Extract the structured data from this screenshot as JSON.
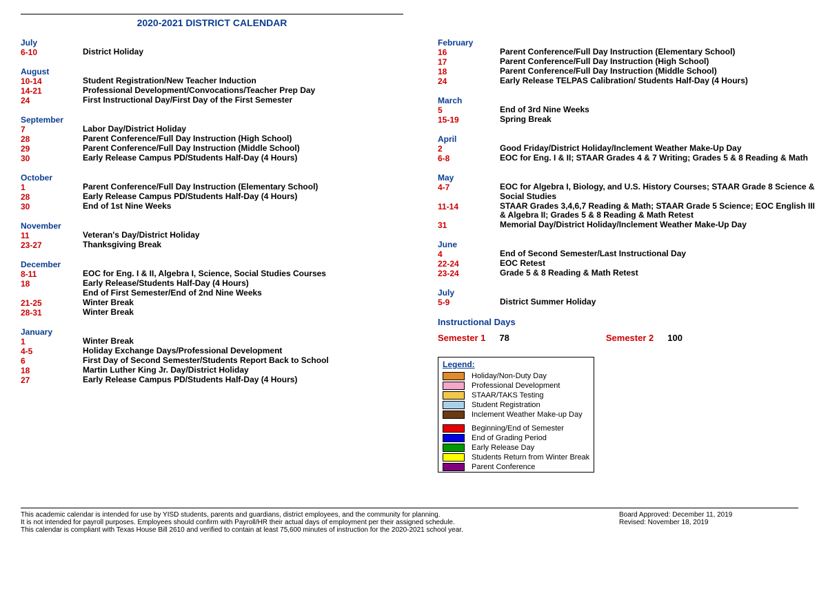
{
  "title": "2020-2021 DISTRICT CALENDAR",
  "left": [
    {
      "month": "July",
      "rows": [
        {
          "d": "6-10",
          "t": "District Holiday"
        }
      ]
    },
    {
      "month": "August",
      "rows": [
        {
          "d": "10-14",
          "t": "Student Registration/New Teacher Induction"
        },
        {
          "d": "14-21",
          "t": "Professional Development/Convocations/Teacher Prep Day"
        },
        {
          "d": "24",
          "t": "First Instructional Day/First Day of the First Semester"
        }
      ]
    },
    {
      "month": "September",
      "rows": [
        {
          "d": "7",
          "t": "Labor Day/District Holiday"
        },
        {
          "d": "28",
          "t": "Parent Conference/Full Day Instruction (High School)"
        },
        {
          "d": "29",
          "t": "Parent Conference/Full Day Instruction (Middle School)"
        },
        {
          "d": "30",
          "t": "Early Release Campus PD/Students Half-Day (4 Hours)"
        }
      ]
    },
    {
      "month": "October",
      "rows": [
        {
          "d": "1",
          "t": "Parent Conference/Full Day Instruction  (Elementary School)"
        },
        {
          "d": "28",
          "t": "Early Release Campus PD/Students Half-Day (4 Hours)"
        },
        {
          "d": "30",
          "t": "End of 1st Nine Weeks"
        }
      ]
    },
    {
      "month": "November",
      "rows": [
        {
          "d": "11",
          "t": "Veteran's Day/District Holiday"
        },
        {
          "d": "23-27",
          "t": "Thanksgiving Break"
        }
      ]
    },
    {
      "month": "December",
      "rows": [
        {
          "d": "8-11",
          "t": "EOC for Eng. I & II, Algebra I, Science, Social Studies Courses"
        },
        {
          "d": "18",
          "t": "Early Release/Students Half-Day (4 Hours)"
        },
        {
          "d": "",
          "t": "End of First Semester/End of 2nd Nine Weeks"
        },
        {
          "d": "21-25",
          "t": "Winter Break"
        },
        {
          "d": "28-31",
          "t": "Winter Break"
        }
      ]
    },
    {
      "month": "January",
      "rows": [
        {
          "d": "1",
          "t": "Winter Break"
        },
        {
          "d": "4-5",
          "t": "Holiday Exchange Days/Professional Development"
        },
        {
          "d": "6",
          "t": "First Day of Second Semester/Students Report Back to School"
        },
        {
          "d": "18",
          "t": "Martin Luther King Jr. Day/District Holiday"
        },
        {
          "d": "27",
          "t": "Early Release Campus PD/Students Half-Day (4 Hours)"
        }
      ]
    }
  ],
  "right": [
    {
      "month": "February",
      "rows": [
        {
          "d": "16",
          "t": "Parent Conference/Full Day Instruction (Elementary School)"
        },
        {
          "d": "17",
          "t": "Parent Conference/Full Day Instruction (High School)"
        },
        {
          "d": "18",
          "t": "Parent Conference/Full Day Instruction (Middle School)"
        },
        {
          "d": "24",
          "t": "Early Release TELPAS Calibration/ Students Half-Day (4 Hours)"
        }
      ]
    },
    {
      "month": "March",
      "rows": [
        {
          "d": "5",
          "t": "End of 3rd Nine Weeks"
        },
        {
          "d": "15-19",
          "t": "Spring Break"
        }
      ]
    },
    {
      "month": "April",
      "rows": [
        {
          "d": "2",
          "t": "Good Friday/District Holiday/Inclement Weather Make-Up Day"
        },
        {
          "d": "6-8",
          "t": "EOC for Eng. I & II; STAAR Grades 4 & 7 Writing; Grades 5 & 8 Reading & Math"
        }
      ]
    },
    {
      "month": "May",
      "rows": [
        {
          "d": "4-7",
          "t": "EOC for Algebra I, Biology, and U.S. History Courses; STAAR Grade 8 Science & Social Studies"
        },
        {
          "d": "11-14",
          "t": "STAAR Grades 3,4,6,7 Reading & Math; STAAR Grade 5 Science; EOC English III & Algebra II; Grades 5 & 8 Reading & Math Retest"
        },
        {
          "d": "31",
          "t": "Memorial Day/District Holiday/Inclement Weather Make-Up Day"
        }
      ]
    },
    {
      "month": "June",
      "rows": [
        {
          "d": "4",
          "t": "End of Second Semester/Last Instructional Day"
        },
        {
          "d": "22-24",
          "t": "EOC Retest"
        },
        {
          "d": "23-24",
          "t": "Grade 5 & 8 Reading & Math Retest"
        }
      ]
    },
    {
      "month": "July",
      "rows": [
        {
          "d": "5-9",
          "t": "District Summer Holiday"
        }
      ]
    }
  ],
  "instructional": {
    "heading": "Instructional Days",
    "sem1_label": "Semester 1",
    "sem1_val": "78",
    "sem2_label": "Semester 2",
    "sem2_val": "100"
  },
  "legend": {
    "title": "Legend:",
    "group1": [
      {
        "c": "#e08a2c",
        "t": "Holiday/Non-Duty Day"
      },
      {
        "c": "#f5a6c9",
        "t": "Professional Development"
      },
      {
        "c": "#f2c84b",
        "t": "STAAR/TAKS Testing"
      },
      {
        "c": "#a9d0e8",
        "t": "Student Registration"
      },
      {
        "c": "#6b3a12",
        "t": "Inclement Weather Make-up Day"
      }
    ],
    "group2": [
      {
        "c": "#e60000",
        "t": "Beginning/End of Semester"
      },
      {
        "c": "#0000e6",
        "t": "End of Grading Period"
      },
      {
        "c": "#009900",
        "t": "Early Release Day"
      },
      {
        "c": "#ffff00",
        "t": "Students Return from Winter Break"
      },
      {
        "c": "#800080",
        "t": "Parent Conference"
      }
    ]
  },
  "footer": {
    "l1": "This academic calendar is intended for use by YISD students, parents and guardians, district employees, and the community for planning.",
    "l2": "It is not intended for payroll purposes. Employees should confirm with Payroll/HR their actual days of employment per their assigned schedule.",
    "l3": "This calendar is compliant with Texas House Bill 2610 and verified to contain at least 75,600 minutes of instruction for the 2020-2021 school year.",
    "r1": "Board Approved:  December 11, 2019",
    "r2": "Revised: November 18, 2019"
  }
}
